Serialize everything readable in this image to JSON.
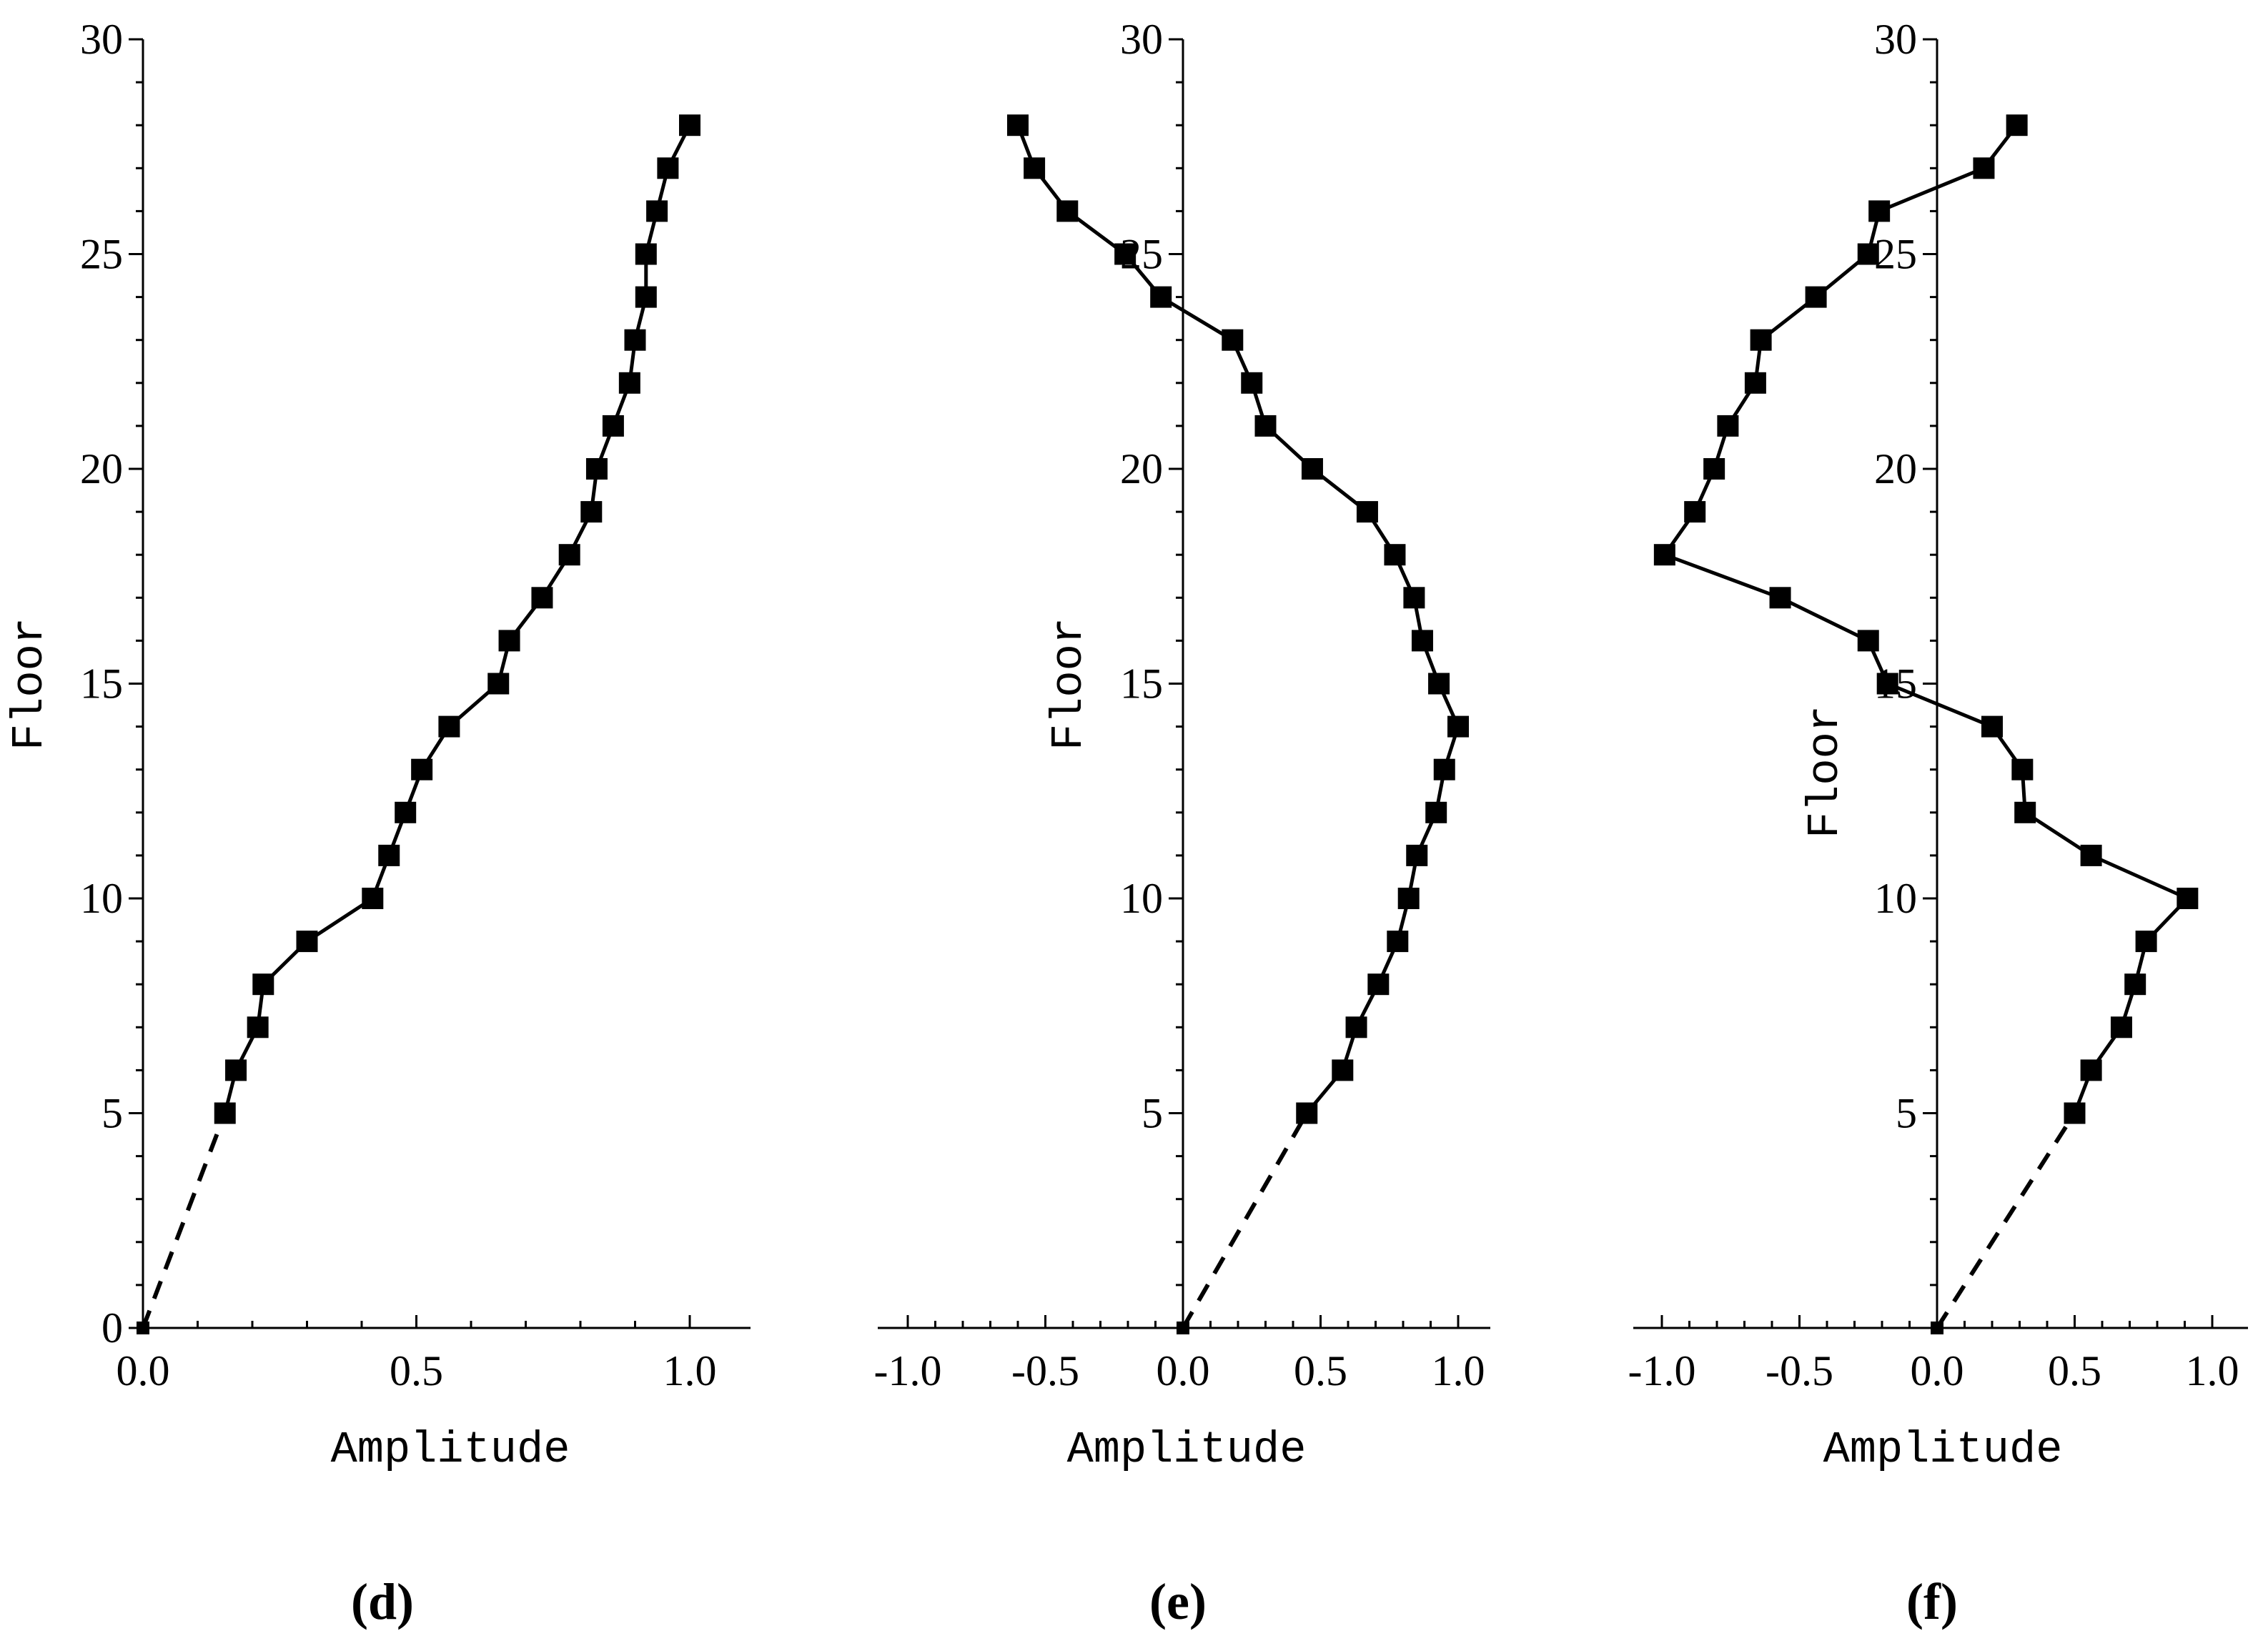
{
  "chart_data": [
    {
      "type": "line",
      "panel_label": "(d)",
      "xlabel": "Amplitude",
      "ylabel": "Floor",
      "xlim": [
        0.0,
        1.0
      ],
      "ylim": [
        0,
        30
      ],
      "xticks": [
        "0.0",
        "0.5",
        "1.0"
      ],
      "yticks": [
        "0",
        "5",
        "10",
        "15",
        "20",
        "25",
        "30"
      ],
      "series": [
        {
          "x": [
            0.0,
            0.15,
            0.17,
            0.21,
            0.22,
            0.3,
            0.42,
            0.45,
            0.48,
            0.51,
            0.56,
            0.65,
            0.67,
            0.73,
            0.78,
            0.82,
            0.83,
            0.86,
            0.89,
            0.9,
            0.92,
            0.92,
            0.94,
            0.96,
            1.0
          ],
          "y": [
            0,
            5,
            6,
            7,
            8,
            9,
            10,
            11,
            12,
            13,
            14,
            15,
            16,
            17,
            18,
            19,
            20,
            21,
            22,
            23,
            24,
            25,
            26,
            27,
            28
          ]
        }
      ]
    },
    {
      "type": "line",
      "panel_label": "(e)",
      "xlabel": "Amplitude",
      "ylabel": "Floor",
      "xlim": [
        -1.0,
        1.0
      ],
      "ylim": [
        0,
        30
      ],
      "xticks": [
        "-1.0",
        "-0.5",
        "0.0",
        "0.5",
        "1.0"
      ],
      "yticks": [
        "5",
        "10",
        "15",
        "20",
        "25",
        "30"
      ],
      "series": [
        {
          "x": [
            0.0,
            0.45,
            0.58,
            0.63,
            0.71,
            0.78,
            0.82,
            0.85,
            0.92,
            0.95,
            1.0,
            0.93,
            0.87,
            0.84,
            0.77,
            0.67,
            0.47,
            0.3,
            0.25,
            0.18,
            -0.08,
            -0.21,
            -0.42,
            -0.54,
            -0.6
          ],
          "y": [
            0,
            5,
            6,
            7,
            8,
            9,
            10,
            11,
            12,
            13,
            14,
            15,
            16,
            17,
            18,
            19,
            20,
            21,
            22,
            23,
            24,
            25,
            26,
            27,
            28
          ]
        }
      ]
    },
    {
      "type": "line",
      "panel_label": "(f)",
      "xlabel": "Amplitude",
      "ylabel": "Floor",
      "xlim": [
        -1.0,
        1.0
      ],
      "ylim": [
        0,
        30
      ],
      "xticks": [
        "-1.0",
        "-0.5",
        "0.0",
        "0.5",
        "1.0"
      ],
      "yticks": [
        "5",
        "10",
        "15",
        "20",
        "25",
        "30"
      ],
      "series": [
        {
          "x": [
            0.0,
            0.5,
            0.56,
            0.67,
            0.72,
            0.76,
            0.91,
            0.56,
            0.32,
            0.31,
            0.2,
            -0.18,
            -0.25,
            -0.57,
            -0.99,
            -0.88,
            -0.81,
            -0.76,
            -0.66,
            -0.64,
            -0.44,
            -0.25,
            -0.21,
            0.17,
            0.29
          ],
          "y": [
            0,
            5,
            6,
            7,
            8,
            9,
            10,
            11,
            12,
            13,
            14,
            15,
            16,
            17,
            18,
            19,
            20,
            21,
            22,
            23,
            24,
            25,
            26,
            27,
            28
          ]
        }
      ]
    }
  ]
}
